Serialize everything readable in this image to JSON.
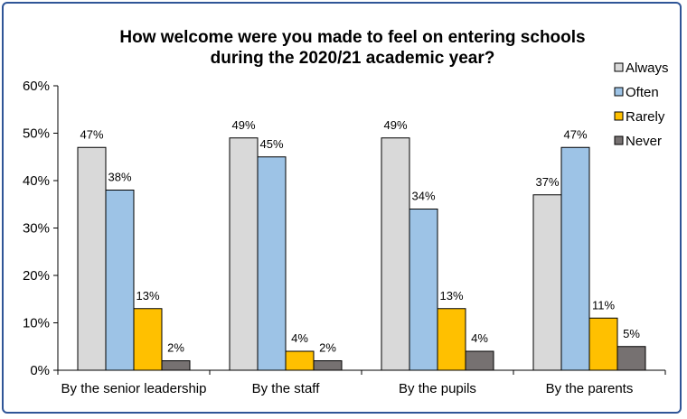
{
  "chart_data": {
    "type": "bar",
    "title_lines": [
      "How welcome were you made to feel on entering schools",
      "during the 2020/21 academic year?"
    ],
    "categories": [
      "By the senior leadership",
      "By the staff",
      "By the pupils",
      "By the parents"
    ],
    "series": [
      {
        "name": "Always",
        "color": "#d9d9d9",
        "values": [
          47,
          49,
          49,
          37
        ]
      },
      {
        "name": "Often",
        "color": "#9dc3e6",
        "values": [
          38,
          45,
          34,
          47
        ]
      },
      {
        "name": "Rarely",
        "color": "#ffc000",
        "values": [
          13,
          4,
          13,
          11
        ]
      },
      {
        "name": "Never",
        "color": "#767171",
        "values": [
          2,
          2,
          4,
          5
        ]
      }
    ],
    "y_ticks": [
      "0%",
      "10%",
      "20%",
      "30%",
      "40%",
      "50%",
      "60%"
    ],
    "ylim": [
      0,
      60
    ],
    "value_suffix": "%",
    "legend_position": "top-right",
    "grid": false
  }
}
